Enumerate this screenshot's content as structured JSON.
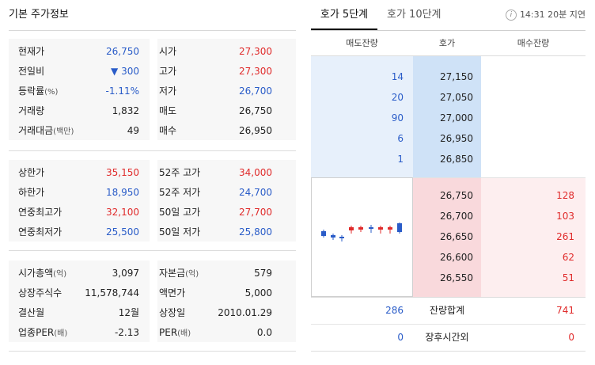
{
  "left": {
    "title": "기본 주가정보",
    "section1": [
      {
        "k1": "현재가",
        "k1s": "",
        "v1": "26,750",
        "v1c": "blue",
        "k2": "시가",
        "k2s": "",
        "v2": "27,300",
        "v2c": "red"
      },
      {
        "k1": "전일비",
        "k1s": "",
        "v1": "▼ 300",
        "v1c": "blue",
        "k2": "고가",
        "k2s": "",
        "v2": "27,300",
        "v2c": "red"
      },
      {
        "k1": "등락률",
        "k1s": "(%)",
        "v1": "-1.11%",
        "v1c": "blue",
        "k2": "저가",
        "k2s": "",
        "v2": "26,700",
        "v2c": "blue"
      },
      {
        "k1": "거래량",
        "k1s": "",
        "v1": "1,832",
        "v1c": "dark",
        "k2": "매도",
        "k2s": "",
        "v2": "26,750",
        "v2c": "dark"
      },
      {
        "k1": "거래대금",
        "k1s": "(백만)",
        "v1": "49",
        "v1c": "dark",
        "k2": "매수",
        "k2s": "",
        "v2": "26,950",
        "v2c": "dark"
      }
    ],
    "section2": [
      {
        "k1": "상한가",
        "k1s": "",
        "v1": "35,150",
        "v1c": "red",
        "k2": "52주 고가",
        "k2s": "",
        "v2": "34,000",
        "v2c": "red"
      },
      {
        "k1": "하한가",
        "k1s": "",
        "v1": "18,950",
        "v1c": "blue",
        "k2": "52주 저가",
        "k2s": "",
        "v2": "24,700",
        "v2c": "blue"
      },
      {
        "k1": "연중최고가",
        "k1s": "",
        "v1": "32,100",
        "v1c": "red",
        "k2": "50일 고가",
        "k2s": "",
        "v2": "27,700",
        "v2c": "red"
      },
      {
        "k1": "연중최저가",
        "k1s": "",
        "v1": "25,500",
        "v1c": "blue",
        "k2": "50일 저가",
        "k2s": "",
        "v2": "25,800",
        "v2c": "blue"
      }
    ],
    "section3": [
      {
        "k1": "시가총액",
        "k1s": "(억)",
        "v1": "3,097",
        "v1c": "dark",
        "k2": "자본금",
        "k2s": "(억)",
        "v2": "579",
        "v2c": "dark"
      },
      {
        "k1": "상장주식수",
        "k1s": "",
        "v1": "11,578,744",
        "v1c": "dark",
        "k2": "액면가",
        "k2s": "",
        "v2": "5,000",
        "v2c": "dark"
      },
      {
        "k1": "결산월",
        "k1s": "",
        "v1": "12월",
        "v1c": "dark",
        "k2": "상장일",
        "k2s": "",
        "v2": "2010.01.29",
        "v2c": "dark"
      },
      {
        "k1": "업종PER",
        "k1s": "(배)",
        "v1": "-2.13",
        "v1c": "dark",
        "k2": "PER",
        "k2s": "(배)",
        "v2": "0.0",
        "v2c": "dark"
      }
    ]
  },
  "right": {
    "tab_active": "호가 5단계",
    "tab_inactive": "호가 10단계",
    "info_icon": "info-icon",
    "delay_text": "14:31 20분 지연",
    "headers": {
      "ask": "매도잔량",
      "price": "호가",
      "bid": "매수잔량"
    },
    "asks": [
      {
        "qty": "14",
        "price": "27,150"
      },
      {
        "qty": "20",
        "price": "27,050"
      },
      {
        "qty": "90",
        "price": "27,000"
      },
      {
        "qty": "6",
        "price": "26,950"
      },
      {
        "qty": "1",
        "price": "26,850"
      }
    ],
    "bids": [
      {
        "price": "26,750",
        "qty": "128"
      },
      {
        "price": "26,700",
        "qty": "103"
      },
      {
        "price": "26,650",
        "qty": "261"
      },
      {
        "price": "26,600",
        "qty": "62"
      },
      {
        "price": "26,550",
        "qty": "51"
      }
    ],
    "totals": {
      "ask": "286",
      "label": "잔량합계",
      "bid": "741"
    },
    "after_hours": {
      "ask": "0",
      "label": "장후시간외",
      "bid": "0"
    },
    "colors": {
      "up": "#e02b2b",
      "down": "#2a5cc8",
      "ask_bg": "#e7f0fb",
      "bid_bg": "#fdeeef"
    }
  }
}
